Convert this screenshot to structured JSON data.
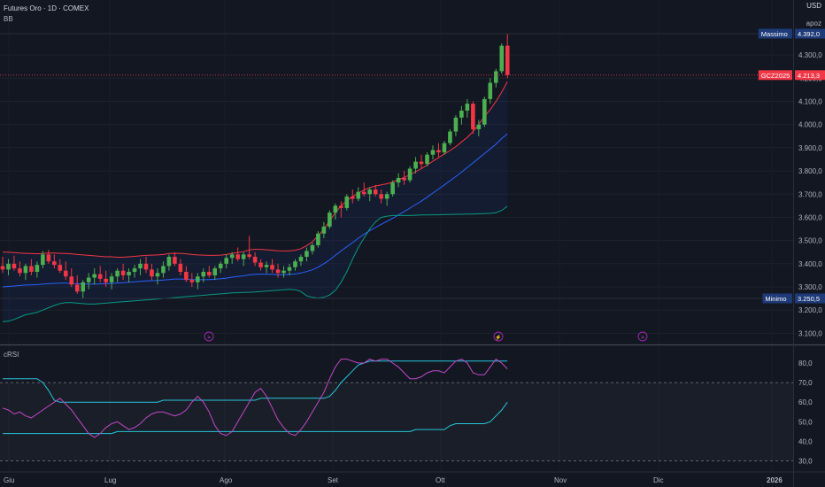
{
  "header": {
    "title": "Futures Oro · 1D · COMEX",
    "indicator_main": "BB",
    "indicator_sub": "cRSI"
  },
  "scale": {
    "currency": "USD",
    "mode_label": "apoz"
  },
  "badges": {
    "high_label": "Massimo",
    "high_value": "4.392,0",
    "last_label": "GCZ2025",
    "last_value": "4.213,3",
    "low_label": "Minimo",
    "low_value": "3.250,5"
  },
  "colors": {
    "up": "#4caf50",
    "down": "#f23645",
    "bb_upper": "#f23645",
    "bb_mid": "#2962ff",
    "bb_lower": "#089981",
    "crsi": "#c048c8",
    "crsi_band": "#26c6da",
    "badge_blue": "#1e3a78"
  },
  "chart_data": [
    {
      "type": "candlestick",
      "title": "Futures Oro · 1D · COMEX",
      "y_ticks": [
        "4.300,0",
        "4.200,0",
        "4.100,0",
        "4.000,0",
        "3.900,0",
        "3.800,0",
        "3.700,0",
        "3.600,0",
        "3.500,0",
        "3.400,0",
        "3.300,0",
        "3.200,0",
        "3.100,0"
      ],
      "x_ticks": [
        "Giu",
        "Lug",
        "Ago",
        "Set",
        "Ott",
        "Nov",
        "Dic",
        "2026"
      ],
      "ylim": [
        3050,
        4420
      ],
      "ohlc": [
        [
          3390,
          3430,
          3360,
          3375
        ],
        [
          3375,
          3420,
          3350,
          3400
        ],
        [
          3400,
          3435,
          3370,
          3380
        ],
        [
          3380,
          3410,
          3345,
          3360
        ],
        [
          3360,
          3400,
          3330,
          3390
        ],
        [
          3390,
          3420,
          3350,
          3365
        ],
        [
          3365,
          3410,
          3340,
          3395
        ],
        [
          3395,
          3455,
          3380,
          3440
        ],
        [
          3440,
          3460,
          3400,
          3410
        ],
        [
          3410,
          3440,
          3380,
          3395
        ],
        [
          3395,
          3420,
          3360,
          3370
        ],
        [
          3370,
          3410,
          3330,
          3345
        ],
        [
          3345,
          3380,
          3300,
          3310
        ],
        [
          3310,
          3350,
          3270,
          3280
        ],
        [
          3280,
          3330,
          3250,
          3320
        ],
        [
          3320,
          3360,
          3290,
          3340
        ],
        [
          3340,
          3380,
          3310,
          3355
        ],
        [
          3355,
          3390,
          3320,
          3335
        ],
        [
          3335,
          3370,
          3300,
          3320
        ],
        [
          3320,
          3360,
          3290,
          3345
        ],
        [
          3345,
          3380,
          3320,
          3370
        ],
        [
          3370,
          3400,
          3330,
          3350
        ],
        [
          3350,
          3380,
          3320,
          3365
        ],
        [
          3365,
          3395,
          3340,
          3380
        ],
        [
          3380,
          3420,
          3350,
          3400
        ],
        [
          3400,
          3430,
          3360,
          3375
        ],
        [
          3375,
          3400,
          3330,
          3345
        ],
        [
          3345,
          3380,
          3310,
          3360
        ],
        [
          3360,
          3410,
          3340,
          3390
        ],
        [
          3390,
          3440,
          3370,
          3430
        ],
        [
          3430,
          3450,
          3390,
          3400
        ],
        [
          3400,
          3420,
          3350,
          3365
        ],
        [
          3365,
          3390,
          3320,
          3330
        ],
        [
          3330,
          3360,
          3300,
          3320
        ],
        [
          3320,
          3360,
          3290,
          3345
        ],
        [
          3345,
          3380,
          3320,
          3365
        ],
        [
          3365,
          3390,
          3340,
          3350
        ],
        [
          3350,
          3390,
          3330,
          3380
        ],
        [
          3380,
          3410,
          3360,
          3400
        ],
        [
          3400,
          3440,
          3380,
          3425
        ],
        [
          3425,
          3450,
          3400,
          3440
        ],
        [
          3440,
          3470,
          3410,
          3420
        ],
        [
          3420,
          3450,
          3390,
          3440
        ],
        [
          3440,
          3520,
          3420,
          3430
        ],
        [
          3430,
          3450,
          3390,
          3405
        ],
        [
          3405,
          3420,
          3370,
          3385
        ],
        [
          3385,
          3410,
          3360,
          3395
        ],
        [
          3395,
          3420,
          3360,
          3375
        ],
        [
          3375,
          3400,
          3340,
          3360
        ],
        [
          3360,
          3390,
          3340,
          3370
        ],
        [
          3370,
          3400,
          3350,
          3385
        ],
        [
          3385,
          3420,
          3370,
          3410
        ],
        [
          3410,
          3440,
          3390,
          3430
        ],
        [
          3430,
          3470,
          3410,
          3455
        ],
        [
          3455,
          3490,
          3440,
          3480
        ],
        [
          3480,
          3540,
          3470,
          3530
        ],
        [
          3530,
          3580,
          3510,
          3560
        ],
        [
          3560,
          3630,
          3550,
          3620
        ],
        [
          3620,
          3660,
          3590,
          3650
        ],
        [
          3650,
          3670,
          3600,
          3640
        ],
        [
          3640,
          3700,
          3630,
          3690
        ],
        [
          3690,
          3720,
          3660,
          3680
        ],
        [
          3680,
          3730,
          3670,
          3710
        ],
        [
          3710,
          3750,
          3690,
          3700
        ],
        [
          3700,
          3730,
          3670,
          3720
        ],
        [
          3720,
          3740,
          3690,
          3700
        ],
        [
          3700,
          3720,
          3660,
          3680
        ],
        [
          3680,
          3710,
          3650,
          3700
        ],
        [
          3700,
          3760,
          3690,
          3750
        ],
        [
          3750,
          3790,
          3730,
          3770
        ],
        [
          3770,
          3800,
          3740,
          3760
        ],
        [
          3760,
          3820,
          3750,
          3810
        ],
        [
          3810,
          3860,
          3790,
          3840
        ],
        [
          3840,
          3870,
          3810,
          3830
        ],
        [
          3830,
          3880,
          3820,
          3870
        ],
        [
          3870,
          3910,
          3850,
          3890
        ],
        [
          3890,
          3920,
          3860,
          3880
        ],
        [
          3880,
          3930,
          3870,
          3920
        ],
        [
          3920,
          3980,
          3910,
          3970
        ],
        [
          3970,
          4040,
          3950,
          4030
        ],
        [
          4030,
          4080,
          4000,
          4060
        ],
        [
          4060,
          4110,
          4030,
          4090
        ],
        [
          4090,
          4100,
          3960,
          3980
        ],
        [
          3980,
          4020,
          3950,
          4000
        ],
        [
          4000,
          4120,
          3990,
          4110
        ],
        [
          4110,
          4200,
          4090,
          4180
        ],
        [
          4180,
          4240,
          4160,
          4230
        ],
        [
          4230,
          4350,
          4220,
          4340
        ],
        [
          4340,
          4392,
          4200,
          4213.3
        ]
      ],
      "bb_upper": [
        3450,
        3450,
        3448,
        3446,
        3445,
        3444,
        3443,
        3444,
        3446,
        3446,
        3445,
        3444,
        3443,
        3440,
        3438,
        3436,
        3434,
        3432,
        3430,
        3430,
        3428,
        3428,
        3430,
        3432,
        3434,
        3436,
        3437,
        3438,
        3440,
        3444,
        3445,
        3445,
        3443,
        3440,
        3438,
        3437,
        3436,
        3436,
        3437,
        3440,
        3445,
        3448,
        3452,
        3460,
        3462,
        3462,
        3460,
        3458,
        3456,
        3455,
        3455,
        3458,
        3465,
        3478,
        3495,
        3520,
        3550,
        3585,
        3620,
        3650,
        3672,
        3690,
        3705,
        3718,
        3728,
        3735,
        3740,
        3745,
        3752,
        3762,
        3772,
        3784,
        3797,
        3810,
        3825,
        3842,
        3858,
        3873,
        3888,
        3905,
        3925,
        3945,
        3970,
        4000,
        4035,
        4065,
        4100,
        4140,
        4185
      ],
      "bb_mid": [
        3300,
        3302,
        3304,
        3306,
        3308,
        3309,
        3310,
        3312,
        3314,
        3315,
        3316,
        3316,
        3315,
        3314,
        3313,
        3312,
        3312,
        3313,
        3314,
        3315,
        3316,
        3318,
        3320,
        3322,
        3324,
        3326,
        3327,
        3328,
        3330,
        3332,
        3334,
        3334,
        3333,
        3332,
        3331,
        3331,
        3332,
        3333,
        3335,
        3338,
        3342,
        3345,
        3348,
        3352,
        3354,
        3355,
        3355,
        3354,
        3353,
        3353,
        3354,
        3356,
        3360,
        3366,
        3374,
        3385,
        3400,
        3417,
        3436,
        3455,
        3473,
        3491,
        3510,
        3527,
        3542,
        3556,
        3570,
        3583,
        3596,
        3610,
        3625,
        3640,
        3655,
        3670,
        3687,
        3705,
        3722,
        3740,
        3758,
        3776,
        3795,
        3815,
        3835,
        3855,
        3875,
        3895,
        3915,
        3940,
        3960
      ],
      "bb_lower": [
        3150,
        3152,
        3160,
        3170,
        3180,
        3185,
        3190,
        3200,
        3210,
        3220,
        3228,
        3232,
        3232,
        3230,
        3228,
        3226,
        3226,
        3228,
        3230,
        3232,
        3234,
        3236,
        3238,
        3240,
        3242,
        3244,
        3246,
        3248,
        3250,
        3252,
        3254,
        3256,
        3258,
        3260,
        3262,
        3264,
        3266,
        3268,
        3270,
        3272,
        3274,
        3275,
        3276,
        3277,
        3278,
        3280,
        3282,
        3284,
        3286,
        3288,
        3290,
        3288,
        3280,
        3262,
        3255,
        3252,
        3255,
        3265,
        3285,
        3320,
        3365,
        3420,
        3470,
        3510,
        3550,
        3580,
        3600,
        3605,
        3608,
        3608,
        3608,
        3608,
        3609,
        3610,
        3610,
        3611,
        3611,
        3612,
        3612,
        3613,
        3613,
        3614,
        3614,
        3615,
        3616,
        3617,
        3620,
        3630,
        3648
      ]
    },
    {
      "type": "line",
      "title": "cRSI",
      "y_ticks": [
        "80,0",
        "70,0",
        "60,0",
        "50,0",
        "40,0",
        "30,0"
      ],
      "ylim": [
        26,
        88
      ],
      "dashed_levels": [
        70,
        30
      ],
      "crsi": [
        57,
        56,
        54,
        55,
        53,
        52,
        54,
        56,
        58,
        60,
        62,
        59,
        56,
        52,
        48,
        44,
        42,
        44,
        47,
        49,
        50,
        48,
        46,
        47,
        49,
        52,
        54,
        55,
        55,
        54,
        53,
        54,
        56,
        60,
        63,
        60,
        55,
        48,
        44,
        43,
        45,
        50,
        55,
        60,
        65,
        67,
        63,
        57,
        51,
        47,
        44,
        43,
        46,
        50,
        55,
        60,
        65,
        72,
        78,
        82,
        82,
        81,
        80,
        80,
        82,
        81,
        82,
        82,
        80,
        78,
        75,
        72,
        72,
        73,
        75,
        76,
        76,
        75,
        78,
        81,
        82,
        80,
        75,
        74,
        74,
        78,
        82,
        80,
        77
      ],
      "band_upper": [
        72,
        72,
        72,
        72,
        72,
        72,
        72,
        70,
        66,
        61,
        60,
        60,
        60,
        60,
        60,
        60,
        60,
        60,
        60,
        60,
        60,
        60,
        60,
        60,
        60,
        60,
        60,
        60,
        61,
        61,
        61,
        61,
        61,
        61,
        61,
        61,
        61,
        61,
        61,
        61,
        61,
        61,
        61,
        61,
        61,
        62,
        62,
        62,
        62,
        62,
        62,
        62,
        62,
        62,
        62,
        62,
        62,
        63,
        66,
        70,
        73,
        76,
        79,
        80,
        81,
        81,
        81,
        81,
        81,
        81,
        81,
        81,
        81,
        81,
        81,
        81,
        81,
        81,
        81,
        81,
        81,
        81,
        81,
        81,
        81,
        81,
        81,
        81,
        81
      ],
      "band_lower": [
        44,
        44,
        44,
        44,
        44,
        44,
        44,
        44,
        44,
        44,
        44,
        44,
        44,
        44,
        44,
        44,
        44,
        44,
        44,
        44,
        45,
        45,
        45,
        45,
        45,
        45,
        45,
        45,
        45,
        45,
        45,
        45,
        45,
        45,
        45,
        45,
        45,
        45,
        45,
        45,
        45,
        45,
        45,
        45,
        45,
        45,
        45,
        45,
        45,
        45,
        45,
        45,
        45,
        45,
        45,
        45,
        45,
        45,
        45,
        45,
        45,
        45,
        45,
        45,
        45,
        45,
        45,
        45,
        45,
        45,
        45,
        45,
        46,
        46,
        46,
        46,
        46,
        46,
        48,
        49,
        49,
        49,
        49,
        49,
        49,
        50,
        53,
        56,
        60
      ]
    }
  ]
}
